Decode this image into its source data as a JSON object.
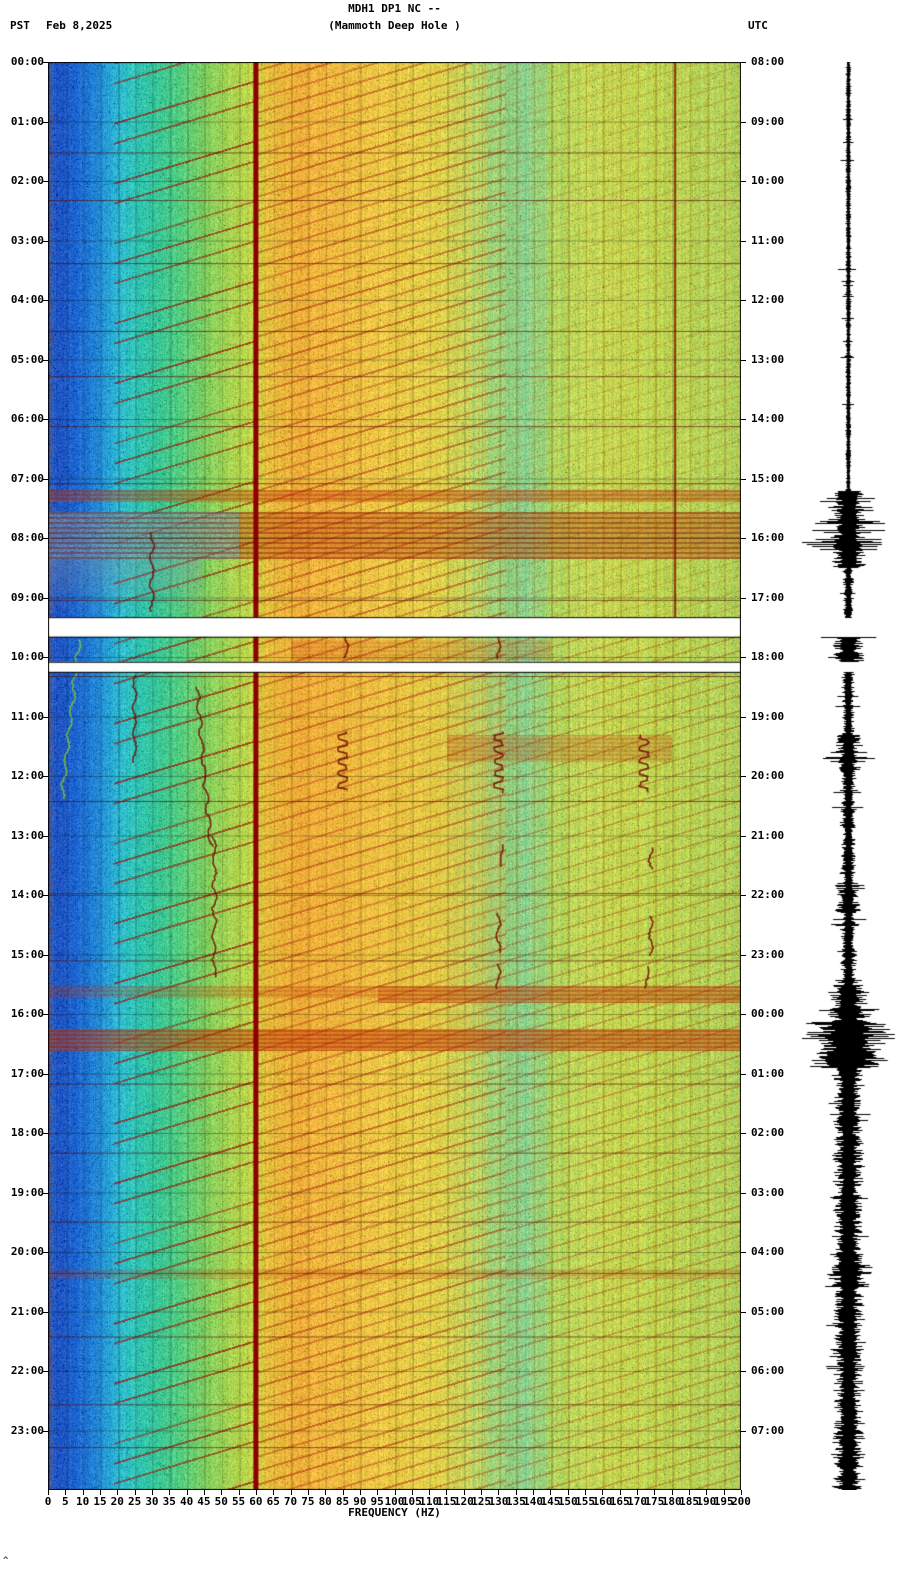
{
  "header": {
    "station_line1": "MDH1 DP1 NC --",
    "station_line2": "(Mammoth Deep Hole )",
    "left_tz": "PST",
    "date": "Feb 8,2025",
    "right_tz": "UTC"
  },
  "footer": {
    "corner_mark": "^"
  },
  "chart_data": {
    "type": "heatmap",
    "subtype": "seismic-spectrogram-webicorder",
    "station": "MDH1 DP1 NC",
    "station_name": "Mammoth Deep Hole",
    "date": "Feb 8,2025",
    "xlabel": "FREQUENCY (HZ)",
    "x_range_hz": [
      0,
      200
    ],
    "x_tick_step_hz": 5,
    "x_ticks": [
      0,
      5,
      10,
      15,
      20,
      25,
      30,
      35,
      40,
      45,
      50,
      55,
      60,
      65,
      70,
      75,
      80,
      85,
      90,
      95,
      100,
      105,
      110,
      115,
      120,
      125,
      130,
      135,
      140,
      145,
      150,
      155,
      160,
      165,
      170,
      175,
      180,
      185,
      190,
      195,
      200
    ],
    "time_axis": {
      "left_zone": "PST",
      "right_zone": "UTC",
      "span_hours": 24,
      "left_labels": [
        "00:00",
        "01:00",
        "02:00",
        "03:00",
        "04:00",
        "05:00",
        "06:00",
        "07:00",
        "08:00",
        "09:00",
        "10:00",
        "11:00",
        "12:00",
        "13:00",
        "14:00",
        "15:00",
        "16:00",
        "17:00",
        "18:00",
        "19:00",
        "20:00",
        "21:00",
        "22:00",
        "23:00"
      ],
      "right_labels": [
        "08:00",
        "09:00",
        "10:00",
        "11:00",
        "12:00",
        "13:00",
        "14:00",
        "15:00",
        "16:00",
        "17:00",
        "18:00",
        "19:00",
        "20:00",
        "21:00",
        "22:00",
        "23:00",
        "00:00",
        "01:00",
        "02:00",
        "03:00",
        "04:00",
        "05:00",
        "06:00",
        "07:00"
      ]
    },
    "mains_hum_line_hz": 60,
    "upper_harmonic_line": {
      "hz": 181,
      "t_hours": [
        0,
        9.33
      ]
    },
    "data_gap_hours_pst": {
      "white_bands": [
        [
          9.33,
          9.66
        ],
        [
          10.08,
          10.25
        ]
      ]
    },
    "palette_stops": [
      [
        0,
        "#2e6fd0"
      ],
      [
        3,
        "#1b50c0"
      ],
      [
        8,
        "#1f6ad4"
      ],
      [
        14,
        "#2388d8"
      ],
      [
        19,
        "#2ab0d4"
      ],
      [
        24,
        "#30c4bc"
      ],
      [
        30,
        "#36c8a0"
      ],
      [
        38,
        "#52cc7e"
      ],
      [
        46,
        "#86d05e"
      ],
      [
        54,
        "#aed44e"
      ],
      [
        59,
        "#c0d648"
      ],
      [
        63,
        "#e6c23e"
      ],
      [
        72,
        "#f0b03a"
      ],
      [
        84,
        "#f0bc40"
      ],
      [
        98,
        "#ecca46"
      ],
      [
        112,
        "#e2d24a"
      ],
      [
        122,
        "#c6d45c"
      ],
      [
        130,
        "#a2d276"
      ],
      [
        138,
        "#8ed08a"
      ],
      [
        146,
        "#b6d65c"
      ],
      [
        158,
        "#ccd852"
      ],
      [
        172,
        "#c6d64e"
      ],
      [
        184,
        "#bed452"
      ],
      [
        200,
        "#b6d258"
      ]
    ],
    "events": [
      {
        "type": "red_band",
        "t": [
          7.18,
          7.38
        ],
        "f": [
          0,
          200
        ],
        "strength": 0.75
      },
      {
        "type": "chaos",
        "t": [
          7.55,
          8.35
        ],
        "f": [
          0,
          200
        ],
        "strength": 1.0
      },
      {
        "type": "grey_patch",
        "t": [
          8.35,
          9.3
        ],
        "f": [
          0,
          44
        ],
        "strength": 0.8
      },
      {
        "type": "red_band",
        "t": [
          9.7,
          10.05
        ],
        "f": [
          70,
          145
        ],
        "strength": 0.35
      },
      {
        "type": "red_band",
        "t": [
          11.3,
          11.75
        ],
        "f": [
          115,
          180
        ],
        "strength": 0.45
      },
      {
        "type": "red_band",
        "t": [
          15.52,
          15.8
        ],
        "f": [
          95,
          200
        ],
        "strength": 0.85
      },
      {
        "type": "red_band",
        "t": [
          15.52,
          15.72
        ],
        "f": [
          0,
          95
        ],
        "strength": 0.45
      },
      {
        "type": "red_band",
        "t": [
          16.25,
          16.62
        ],
        "f": [
          0,
          200
        ],
        "strength": 0.95
      },
      {
        "type": "red_band",
        "t": [
          20.28,
          20.45
        ],
        "f": [
          0,
          200
        ],
        "strength": 0.3
      }
    ],
    "thin_event_lines_pst": [
      1.52,
      2.32,
      3.38,
      4.52,
      5.28,
      6.12,
      7.08,
      9.04,
      10.32,
      12.42,
      13.97,
      15.1,
      17.17,
      18.33,
      19.49,
      20.35,
      21.42,
      22.56,
      23.28
    ],
    "squiggle_tracks": [
      {
        "f": 86,
        "t": [
          9.55,
          10.05
        ]
      },
      {
        "f": 85,
        "t": [
          11.25,
          12.25
        ],
        "zigzag": true
      },
      {
        "f": 130,
        "t": [
          9.6,
          10.05
        ]
      },
      {
        "f": 130,
        "t": [
          11.25,
          12.3
        ],
        "zigzag": true
      },
      {
        "f": 131,
        "t": [
          13.15,
          13.55
        ]
      },
      {
        "f": 130,
        "t": [
          14.3,
          15.0
        ]
      },
      {
        "f": 130,
        "t": [
          15.15,
          15.6
        ]
      },
      {
        "f": 172,
        "t": [
          11.3,
          12.3
        ],
        "zigzag": true
      },
      {
        "f": 174,
        "t": [
          13.2,
          13.6
        ]
      },
      {
        "f": 174,
        "t": [
          14.35,
          15.05
        ]
      },
      {
        "f": 173,
        "t": [
          15.2,
          15.6
        ]
      },
      {
        "f": 43,
        "t": [
          10.5,
          13.2
        ],
        "drift": 4
      },
      {
        "f": 48,
        "t": [
          13.0,
          15.4
        ]
      },
      {
        "f": 30,
        "t": [
          7.9,
          9.25
        ]
      },
      {
        "f": 25,
        "t": [
          10.3,
          11.8
        ]
      },
      {
        "f": 9,
        "t": [
          9.7,
          12.4
        ],
        "drift": -5,
        "color": "rgba(122,192,67,0.9)"
      }
    ],
    "trace": {
      "segments": [
        {
          "t": [
            0,
            7.2
          ],
          "base": 1.5,
          "spike": 9,
          "prob": 0.02
        },
        {
          "t": [
            7.2,
            8.5
          ],
          "base": 10,
          "spike": 40,
          "prob": 0.25
        },
        {
          "t": [
            8.5,
            9.33
          ],
          "base": 3,
          "spike": 12,
          "prob": 0.06
        },
        {
          "t": [
            9.66,
            10.08
          ],
          "base": 10,
          "spike": 26,
          "prob": 0.2
        },
        {
          "t": [
            10.25,
            11.3
          ],
          "base": 4,
          "spike": 14,
          "prob": 0.08
        },
        {
          "t": [
            11.3,
            11.9
          ],
          "base": 8,
          "spike": 24,
          "prob": 0.2
        },
        {
          "t": [
            11.9,
            13.9
          ],
          "base": 4.5,
          "spike": 15,
          "prob": 0.09
        },
        {
          "t": [
            13.9,
            14.3
          ],
          "base": 7,
          "spike": 20,
          "prob": 0.15
        },
        {
          "t": [
            14.3,
            15.5
          ],
          "base": 4.5,
          "spike": 14,
          "prob": 0.09
        },
        {
          "t": [
            15.5,
            16.1
          ],
          "base": 12,
          "spike": 30,
          "prob": 0.25
        },
        {
          "t": [
            16.1,
            16.9
          ],
          "base": 22,
          "spike": 46,
          "prob": 0.35
        },
        {
          "t": [
            16.9,
            20.2
          ],
          "base": 9,
          "spike": 18,
          "prob": 0.12
        },
        {
          "t": [
            20.2,
            20.6
          ],
          "base": 13,
          "spike": 26,
          "prob": 0.2
        },
        {
          "t": [
            20.6,
            24
          ],
          "base": 9,
          "spike": 18,
          "prob": 0.12
        }
      ]
    }
  }
}
